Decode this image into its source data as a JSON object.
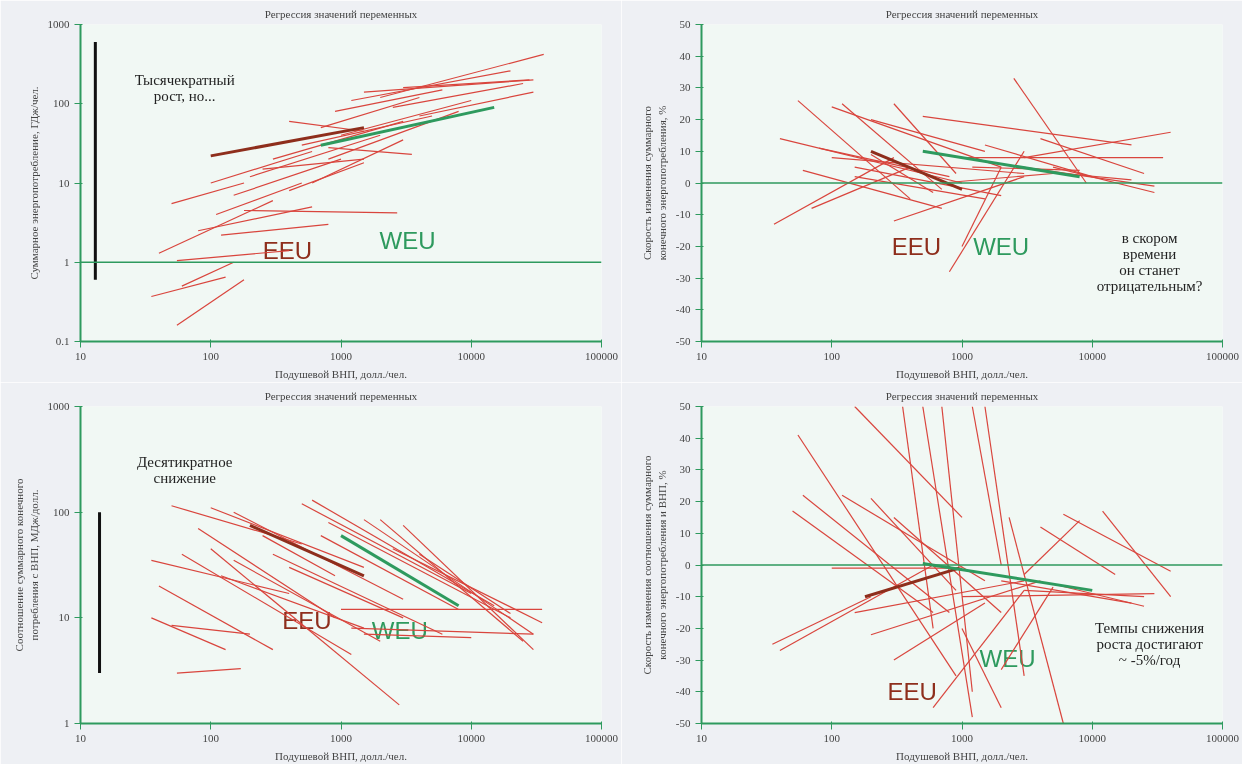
{
  "chart_data": [
    {
      "type": "line",
      "title": "Регрессия значений переменных",
      "xlabel": "Подушевой ВНП, долл./чел.",
      "ylabel": "Суммарное энергопотребление, ГДж/чел.",
      "log": "xy",
      "grid": false,
      "xlim": [
        10,
        100000
      ],
      "xticks": [
        10,
        100,
        1000,
        10000,
        100000
      ],
      "ylim": [
        0.1,
        1000
      ],
      "yticks": [
        0.1,
        1,
        10,
        100,
        1000
      ],
      "ref_lines": [
        {
          "axis": "y",
          "value": 1,
          "color": "#2e9a5e"
        }
      ],
      "annotations": [
        "Тысячекратный\nрост, но..."
      ],
      "series": [
        {
          "color": "#d9453d",
          "x": [
            50,
            180
          ],
          "values": [
            5.5,
            10
          ]
        },
        {
          "color": "#d9453d",
          "x": [
            40,
            300
          ],
          "values": [
            1.3,
            6
          ]
        },
        {
          "color": "#d9453d",
          "x": [
            55,
            400
          ],
          "values": [
            1.05,
            1.4
          ]
        },
        {
          "color": "#d9453d",
          "x": [
            35,
            130
          ],
          "values": [
            0.37,
            0.65
          ]
        },
        {
          "color": "#d9453d",
          "x": [
            55,
            180
          ],
          "values": [
            0.16,
            0.6
          ]
        },
        {
          "color": "#d9453d",
          "x": [
            60,
            150
          ],
          "values": [
            0.5,
            1.0
          ]
        },
        {
          "color": "#d9453d",
          "x": [
            80,
            600
          ],
          "values": [
            2.5,
            5
          ]
        },
        {
          "color": "#d9453d",
          "x": [
            100,
            600
          ],
          "values": [
            10,
            25
          ]
        },
        {
          "color": "#d9453d",
          "x": [
            110,
            500
          ],
          "values": [
            4,
            10
          ]
        },
        {
          "color": "#d9453d",
          "x": [
            120,
            800
          ],
          "values": [
            2.2,
            3
          ]
        },
        {
          "color": "#d9453d",
          "x": [
            150,
            1000
          ],
          "values": [
            7,
            20
          ]
        },
        {
          "color": "#d9453d",
          "x": [
            180,
            2700
          ],
          "values": [
            4.5,
            4.2
          ]
        },
        {
          "color": "#d9453d",
          "x": [
            200,
            2000
          ],
          "values": [
            12,
            40
          ]
        },
        {
          "color": "#d9453d",
          "x": [
            250,
            1500
          ],
          "values": [
            15,
            20
          ]
        },
        {
          "color": "#d9453d",
          "x": [
            300,
            3000
          ],
          "values": [
            20,
            60
          ]
        },
        {
          "color": "#d9453d",
          "x": [
            400,
            1500
          ],
          "values": [
            60,
            45
          ]
        },
        {
          "color": "#d9453d",
          "x": [
            500,
            5000
          ],
          "values": [
            30,
            70
          ]
        },
        {
          "color": "#d9453d",
          "x": [
            800,
            3500
          ],
          "values": [
            28,
            23
          ]
        },
        {
          "color": "#d9453d",
          "x": [
            700,
            4000
          ],
          "values": [
            50,
            120
          ]
        },
        {
          "color": "#d9453d",
          "x": [
            900,
            6000
          ],
          "values": [
            80,
            150
          ]
        },
        {
          "color": "#d9453d",
          "x": [
            1200,
            20000
          ],
          "values": [
            110,
            260
          ]
        },
        {
          "color": "#d9453d",
          "x": [
            1500,
            30000
          ],
          "values": [
            140,
            200
          ]
        },
        {
          "color": "#d9453d",
          "x": [
            2000,
            36000
          ],
          "values": [
            120,
            420
          ]
        },
        {
          "color": "#d9453d",
          "x": [
            2500,
            25000
          ],
          "values": [
            90,
            180
          ]
        },
        {
          "color": "#d9453d",
          "x": [
            3000,
            28000
          ],
          "values": [
            160,
            200
          ]
        },
        {
          "color": "#d9453d",
          "x": [
            4000,
            30000
          ],
          "values": [
            70,
            140
          ]
        },
        {
          "color": "#d9453d",
          "x": [
            1000,
            10000
          ],
          "values": [
            40,
            110
          ]
        },
        {
          "color": "#d9453d",
          "x": [
            800,
            8000
          ],
          "values": [
            20,
            80
          ]
        },
        {
          "color": "#d9453d",
          "x": [
            600,
            3000
          ],
          "values": [
            10,
            35
          ]
        },
        {
          "color": "#d9453d",
          "x": [
            400,
            1500
          ],
          "values": [
            8,
            18
          ]
        },
        {
          "name": "EEU",
          "color": "#8e2e1c",
          "x": [
            100,
            1500
          ],
          "values": [
            22,
            50
          ]
        },
        {
          "name": "WEU",
          "color": "#2e9a5e",
          "x": [
            700,
            15000
          ],
          "values": [
            30,
            90
          ]
        },
        {
          "color": "#111111",
          "x": [
            13,
            13
          ],
          "values": [
            0.6,
            600
          ]
        }
      ]
    },
    {
      "type": "line",
      "title": "Регрессия значений переменных",
      "xlabel": "Подушевой ВНП, долл./чел.",
      "ylabel": "Скорость изменения суммарного\nконечного энергопотребления, %",
      "log": "x",
      "grid": false,
      "xlim": [
        10,
        100000
      ],
      "xticks": [
        10,
        100,
        1000,
        10000,
        100000
      ],
      "ylim": [
        -50,
        50
      ],
      "yticks": [
        -50,
        -40,
        -30,
        -20,
        -10,
        0,
        10,
        20,
        30,
        40,
        50
      ],
      "ref_lines": [
        {
          "axis": "y",
          "value": 0,
          "color": "#2e9a5e"
        }
      ],
      "annotations": [
        "в скором\nвремени\nон станет\nотрицательным?"
      ],
      "series": [
        {
          "color": "#d9453d",
          "x": [
            55,
            400
          ],
          "values": [
            26,
            -5
          ]
        },
        {
          "color": "#d9453d",
          "x": [
            120,
            700
          ],
          "values": [
            25,
            -2
          ]
        },
        {
          "color": "#d9453d",
          "x": [
            100,
            2000
          ],
          "values": [
            24,
            5
          ]
        },
        {
          "color": "#d9453d",
          "x": [
            300,
            900
          ],
          "values": [
            25,
            3
          ]
        },
        {
          "color": "#d9453d",
          "x": [
            36,
            300
          ],
          "values": [
            -13,
            8
          ]
        },
        {
          "color": "#d9453d",
          "x": [
            40,
            1000
          ],
          "values": [
            14,
            0
          ]
        },
        {
          "color": "#d9453d",
          "x": [
            60,
            700
          ],
          "values": [
            4,
            -8
          ]
        },
        {
          "color": "#d9453d",
          "x": [
            80,
            800
          ],
          "values": [
            11,
            2
          ]
        },
        {
          "color": "#d9453d",
          "x": [
            100,
            3000
          ],
          "values": [
            8,
            3
          ]
        },
        {
          "color": "#d9453d",
          "x": [
            150,
            2000
          ],
          "values": [
            5,
            -4
          ]
        },
        {
          "color": "#d9453d",
          "x": [
            200,
            1500
          ],
          "values": [
            20,
            10
          ]
        },
        {
          "color": "#d9453d",
          "x": [
            500,
            20000
          ],
          "values": [
            21,
            12
          ]
        },
        {
          "color": "#d9453d",
          "x": [
            2500,
            9000
          ],
          "values": [
            33,
            0
          ]
        },
        {
          "color": "#d9453d",
          "x": [
            800,
            3000
          ],
          "values": [
            -28,
            10
          ]
        },
        {
          "color": "#d9453d",
          "x": [
            1000,
            2000
          ],
          "values": [
            -20,
            5
          ]
        },
        {
          "color": "#d9453d",
          "x": [
            300,
            3000
          ],
          "values": [
            -12,
            2
          ]
        },
        {
          "color": "#d9453d",
          "x": [
            1500,
            10000
          ],
          "values": [
            12,
            2
          ]
        },
        {
          "color": "#d9453d",
          "x": [
            2000,
            30000
          ],
          "values": [
            6,
            -1
          ]
        },
        {
          "color": "#d9453d",
          "x": [
            3000,
            40000
          ],
          "values": [
            8,
            16
          ]
        },
        {
          "color": "#d9453d",
          "x": [
            4000,
            25000
          ],
          "values": [
            14,
            3
          ]
        },
        {
          "color": "#d9453d",
          "x": [
            5000,
            30000
          ],
          "values": [
            5,
            -3
          ]
        },
        {
          "color": "#d9453d",
          "x": [
            6000,
            20000
          ],
          "values": [
            3,
            1
          ]
        },
        {
          "color": "#d9453d",
          "x": [
            1000,
            35000
          ],
          "values": [
            8,
            8
          ]
        },
        {
          "color": "#d9453d",
          "x": [
            150,
            1500
          ],
          "values": [
            2,
            -5
          ]
        },
        {
          "color": "#d9453d",
          "x": [
            70,
            400
          ],
          "values": [
            -8,
            5
          ]
        },
        {
          "color": "#d9453d",
          "x": [
            200,
            600
          ],
          "values": [
            9,
            -3
          ]
        },
        {
          "color": "#d9453d",
          "x": [
            1200,
            8000
          ],
          "values": [
            5,
            4
          ]
        },
        {
          "color": "#d9453d",
          "x": [
            700,
            5000
          ],
          "values": [
            0,
            3
          ]
        },
        {
          "name": "EEU",
          "color": "#8e2e1c",
          "x": [
            200,
            1000
          ],
          "values": [
            10,
            -2
          ]
        },
        {
          "name": "WEU",
          "color": "#2e9a5e",
          "x": [
            500,
            8000
          ],
          "values": [
            10,
            2
          ]
        }
      ]
    },
    {
      "type": "line",
      "title": "Регрессия значений переменных",
      "xlabel": "Подушевой ВНП, долл./чел.",
      "ylabel": "Соотношение суммарного конечного\nпотребления с ВНП, МДж/долл.",
      "log": "xy",
      "grid": false,
      "xlim": [
        10,
        100000
      ],
      "xticks": [
        10,
        100,
        1000,
        10000,
        100000
      ],
      "ylim": [
        1,
        1000
      ],
      "yticks": [
        1,
        10,
        100,
        1000
      ],
      "annotations": [
        "Десятикратное\nснижение"
      ],
      "series": [
        {
          "color": "#d9453d",
          "x": [
            50,
            500
          ],
          "values": [
            115,
            50
          ]
        },
        {
          "color": "#d9453d",
          "x": [
            100,
            1500
          ],
          "values": [
            110,
            30
          ]
        },
        {
          "color": "#d9453d",
          "x": [
            600,
            15000
          ],
          "values": [
            130,
            13
          ]
        },
        {
          "color": "#d9453d",
          "x": [
            500,
            10000
          ],
          "values": [
            120,
            17
          ]
        },
        {
          "color": "#d9453d",
          "x": [
            800,
            20000
          ],
          "values": [
            80,
            10
          ]
        },
        {
          "color": "#d9453d",
          "x": [
            1500,
            30000
          ],
          "values": [
            85,
            7
          ]
        },
        {
          "color": "#d9453d",
          "x": [
            2000,
            25000
          ],
          "values": [
            85,
            6
          ]
        },
        {
          "color": "#d9453d",
          "x": [
            3000,
            30000
          ],
          "values": [
            75,
            5
          ]
        },
        {
          "color": "#d9453d",
          "x": [
            35,
            400
          ],
          "values": [
            35,
            17
          ]
        },
        {
          "color": "#d9453d",
          "x": [
            40,
            300
          ],
          "values": [
            20,
            5
          ]
        },
        {
          "color": "#d9453d",
          "x": [
            35,
            130
          ],
          "values": [
            10,
            5
          ]
        },
        {
          "color": "#d9453d",
          "x": [
            55,
            170
          ],
          "values": [
            3,
            3.3
          ]
        },
        {
          "color": "#d9453d",
          "x": [
            50,
            200
          ],
          "values": [
            8.5,
            7
          ]
        },
        {
          "color": "#d9453d",
          "x": [
            60,
            1200
          ],
          "values": [
            40,
            4.5
          ]
        },
        {
          "color": "#d9453d",
          "x": [
            80,
            900
          ],
          "values": [
            70,
            10
          ]
        },
        {
          "color": "#d9453d",
          "x": [
            100,
            2800
          ],
          "values": [
            45,
            1.5
          ]
        },
        {
          "color": "#d9453d",
          "x": [
            150,
            2000
          ],
          "values": [
            35,
            6
          ]
        },
        {
          "color": "#d9453d",
          "x": [
            150,
            3000
          ],
          "values": [
            100,
            15
          ]
        },
        {
          "color": "#d9453d",
          "x": [
            300,
            6000
          ],
          "values": [
            40,
            7
          ]
        },
        {
          "color": "#d9453d",
          "x": [
            1000,
            35000
          ],
          "values": [
            12,
            12
          ]
        },
        {
          "color": "#d9453d",
          "x": [
            1200,
            30000
          ],
          "values": [
            8,
            7
          ]
        },
        {
          "color": "#d9453d",
          "x": [
            1500,
            10000
          ],
          "values": [
            7,
            6.5
          ]
        },
        {
          "color": "#d9453d",
          "x": [
            700,
            8000
          ],
          "values": [
            60,
            12
          ]
        },
        {
          "color": "#d9453d",
          "x": [
            400,
            3000
          ],
          "values": [
            30,
            10
          ]
        },
        {
          "color": "#d9453d",
          "x": [
            250,
            900
          ],
          "values": [
            60,
            25
          ]
        },
        {
          "color": "#d9453d",
          "x": [
            4000,
            20000
          ],
          "values": [
            40,
            11
          ]
        },
        {
          "color": "#d9453d",
          "x": [
            2500,
            35000
          ],
          "values": [
            45,
            9
          ]
        },
        {
          "color": "#d9453d",
          "x": [
            120,
            1500
          ],
          "values": [
            25,
            8
          ]
        },
        {
          "name": "EEU",
          "color": "#8e2e1c",
          "x": [
            200,
            1500
          ],
          "values": [
            75,
            25
          ]
        },
        {
          "name": "WEU",
          "color": "#2e9a5e",
          "x": [
            1000,
            8000
          ],
          "values": [
            60,
            13
          ]
        },
        {
          "color": "#111111",
          "x": [
            14,
            14
          ],
          "values": [
            100,
            3
          ]
        }
      ]
    },
    {
      "type": "line",
      "title": "Регрессия значений переменных",
      "xlabel": "Подушевой ВНП, долл./чел.",
      "ylabel": "Скорость изменения соотношения суммарного\nконечного энергопотребления и ВНП, %",
      "log": "x",
      "grid": false,
      "xlim": [
        10,
        100000
      ],
      "xticks": [
        10,
        100,
        1000,
        10000,
        100000
      ],
      "ylim": [
        -50,
        50
      ],
      "yticks": [
        -50,
        -40,
        -30,
        -20,
        -10,
        0,
        10,
        20,
        30,
        40,
        50
      ],
      "ref_lines": [
        {
          "axis": "y",
          "value": 0,
          "color": "#2e9a5e"
        }
      ],
      "annotations": [
        "Темпы снижения\nроста достигают\n~ -5%/год"
      ],
      "series": [
        {
          "color": "#d9453d",
          "x": [
            55,
            900
          ],
          "values": [
            41,
            -35
          ]
        },
        {
          "color": "#d9453d",
          "x": [
            150,
            1000
          ],
          "values": [
            50,
            15
          ]
        },
        {
          "color": "#d9453d",
          "x": [
            350,
            600
          ],
          "values": [
            50,
            -20
          ]
        },
        {
          "color": "#d9453d",
          "x": [
            500,
            1200
          ],
          "values": [
            50,
            -48
          ]
        },
        {
          "color": "#d9453d",
          "x": [
            700,
            1200
          ],
          "values": [
            50,
            -40
          ]
        },
        {
          "color": "#d9453d",
          "x": [
            1200,
            2000
          ],
          "values": [
            50,
            0
          ]
        },
        {
          "color": "#d9453d",
          "x": [
            1500,
            3000
          ],
          "values": [
            50,
            -35
          ]
        },
        {
          "color": "#d9453d",
          "x": [
            2300,
            6000
          ],
          "values": [
            15,
            -50
          ]
        },
        {
          "color": "#d9453d",
          "x": [
            40,
            600
          ],
          "values": [
            -27,
            0
          ]
        },
        {
          "color": "#d9453d",
          "x": [
            35,
            200
          ],
          "values": [
            -25,
            -10
          ]
        },
        {
          "color": "#d9453d",
          "x": [
            60,
            800
          ],
          "values": [
            22,
            -15
          ]
        },
        {
          "color": "#d9453d",
          "x": [
            50,
            600
          ],
          "values": [
            17,
            -15
          ]
        },
        {
          "color": "#d9453d",
          "x": [
            120,
            1500
          ],
          "values": [
            22,
            -5
          ]
        },
        {
          "color": "#d9453d",
          "x": [
            200,
            900
          ],
          "values": [
            21,
            -8
          ]
        },
        {
          "color": "#d9453d",
          "x": [
            300,
            2000
          ],
          "values": [
            15,
            -15
          ]
        },
        {
          "color": "#d9453d",
          "x": [
            150,
            3000
          ],
          "values": [
            -15,
            -5
          ]
        },
        {
          "color": "#d9453d",
          "x": [
            200,
            4000
          ],
          "values": [
            -22,
            -5
          ]
        },
        {
          "color": "#d9453d",
          "x": [
            300,
            1500
          ],
          "values": [
            -30,
            -12
          ]
        },
        {
          "color": "#d9453d",
          "x": [
            600,
            3000
          ],
          "values": [
            -45,
            -8
          ]
        },
        {
          "color": "#d9453d",
          "x": [
            1000,
            2000
          ],
          "values": [
            -20,
            -45
          ]
        },
        {
          "color": "#d9453d",
          "x": [
            2000,
            5000
          ],
          "values": [
            -33,
            -7
          ]
        },
        {
          "color": "#d9453d",
          "x": [
            1000,
            30000
          ],
          "values": [
            -10,
            -9
          ]
        },
        {
          "color": "#d9453d",
          "x": [
            2000,
            20000
          ],
          "values": [
            -5,
            -12
          ]
        },
        {
          "color": "#d9453d",
          "x": [
            3000,
            25000
          ],
          "values": [
            -8,
            -10
          ]
        },
        {
          "color": "#d9453d",
          "x": [
            5000,
            25000
          ],
          "values": [
            -6,
            -13
          ]
        },
        {
          "color": "#d9453d",
          "x": [
            6000,
            40000
          ],
          "values": [
            16,
            -2
          ]
        },
        {
          "color": "#d9453d",
          "x": [
            12000,
            40000
          ],
          "values": [
            17,
            -10
          ]
        },
        {
          "color": "#d9453d",
          "x": [
            4000,
            15000
          ],
          "values": [
            12,
            -3
          ]
        },
        {
          "color": "#d9453d",
          "x": [
            3000,
            8000
          ],
          "values": [
            -3,
            14
          ]
        },
        {
          "color": "#d9453d",
          "x": [
            100,
            1000
          ],
          "values": [
            -1,
            -1
          ]
        },
        {
          "name": "EEU",
          "color": "#8e2e1c",
          "x": [
            180,
            950
          ],
          "values": [
            -10,
            -1
          ]
        },
        {
          "name": "WEU",
          "color": "#2e9a5e",
          "x": [
            500,
            10000
          ],
          "values": [
            0.5,
            -8
          ]
        }
      ]
    }
  ]
}
